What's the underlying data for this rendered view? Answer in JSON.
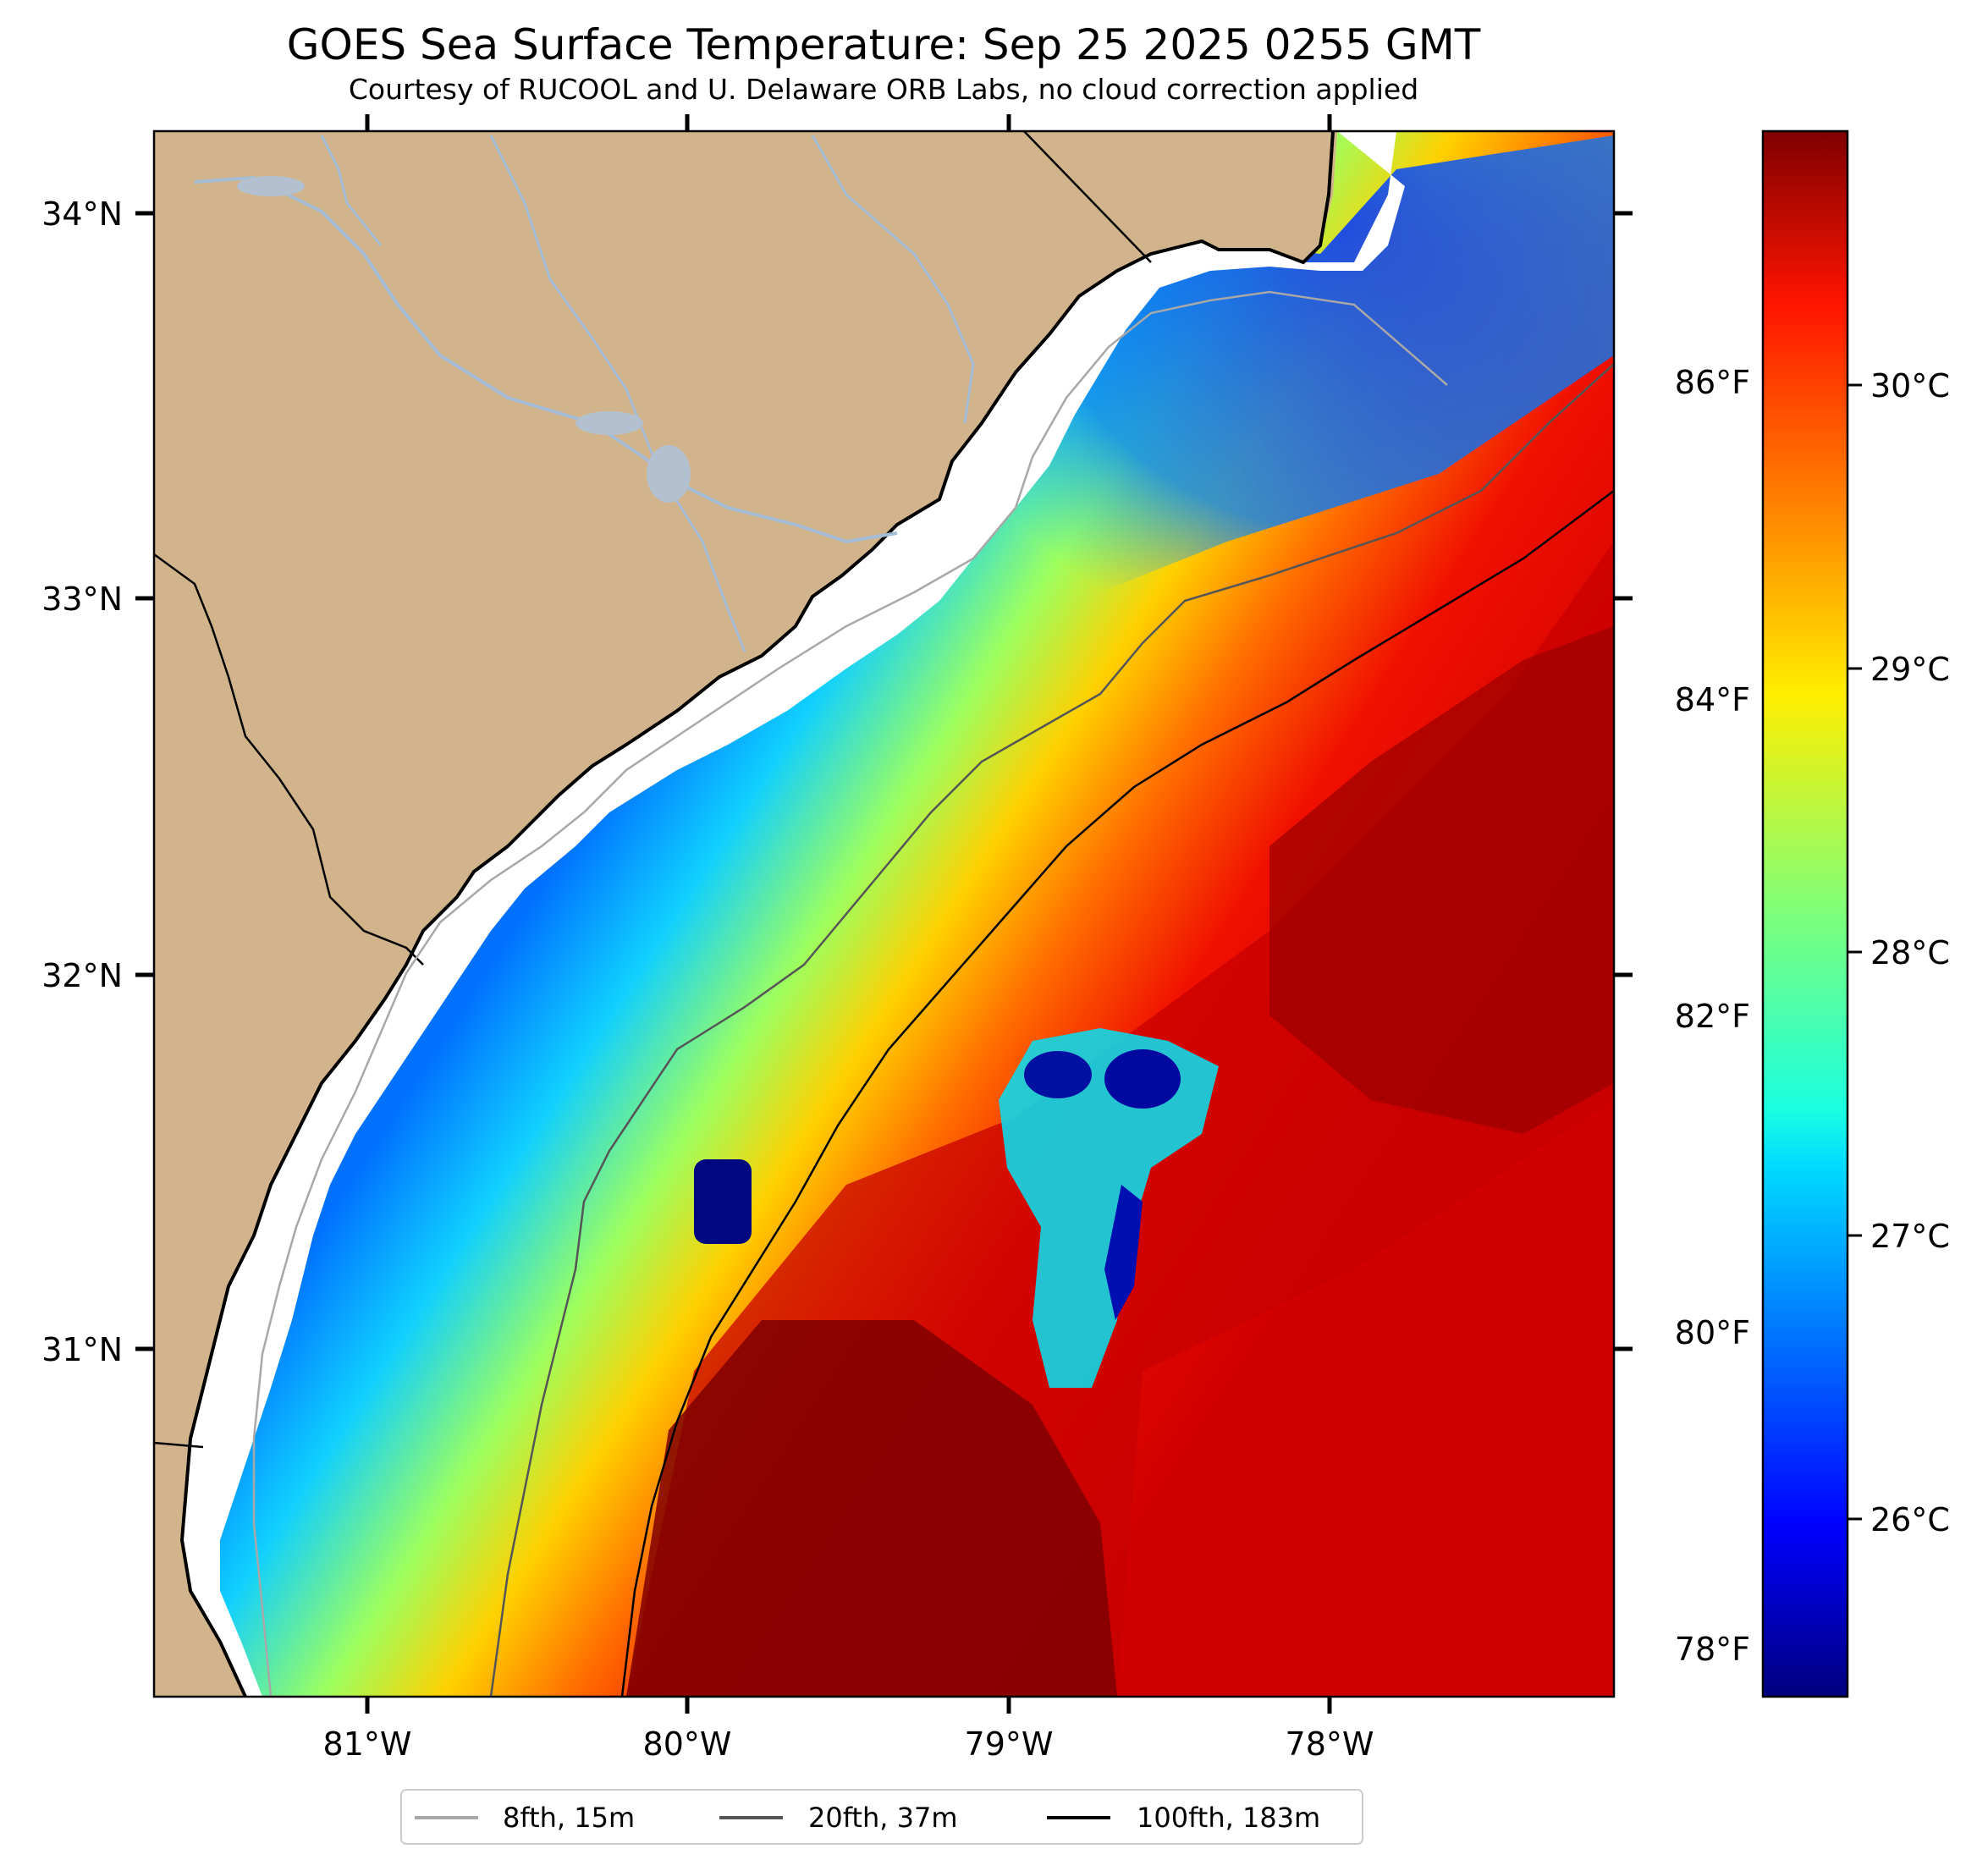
{
  "title": "GOES Sea Surface Temperature: Sep 25 2025 0255 GMT",
  "subtitle": "Courtesy of RUCOOL and U. Delaware ORB Labs, no cloud correction applied",
  "map": {
    "lat_range": [
      30.1,
      34.22
    ],
    "lon_range": [
      -81.67,
      -77.15
    ],
    "lat_ticks": [
      "34°N",
      "33°N",
      "32°N",
      "31°N"
    ],
    "lon_ticks": [
      "81°W",
      "80°W",
      "79°W",
      "78°W"
    ],
    "fahrenheit_ticks": [
      "86°F",
      "84°F",
      "82°F",
      "80°F",
      "78°F"
    ]
  },
  "colorbar": {
    "colormap": "jet",
    "range_c": [
      25.4,
      31.0
    ],
    "ticks": [
      "30°C",
      "29°C",
      "28°C",
      "27°C",
      "26°C"
    ]
  },
  "legend": {
    "items": [
      {
        "label": "8fth, 15m",
        "color": "#a8a8a8"
      },
      {
        "label": "20fth, 37m",
        "color": "#555555"
      },
      {
        "label": "100fth, 183m",
        "color": "#000000"
      }
    ]
  },
  "colors": {
    "land": "#d2b48c",
    "river": "#a4bcd6",
    "coast_gap": "#ffffff"
  }
}
